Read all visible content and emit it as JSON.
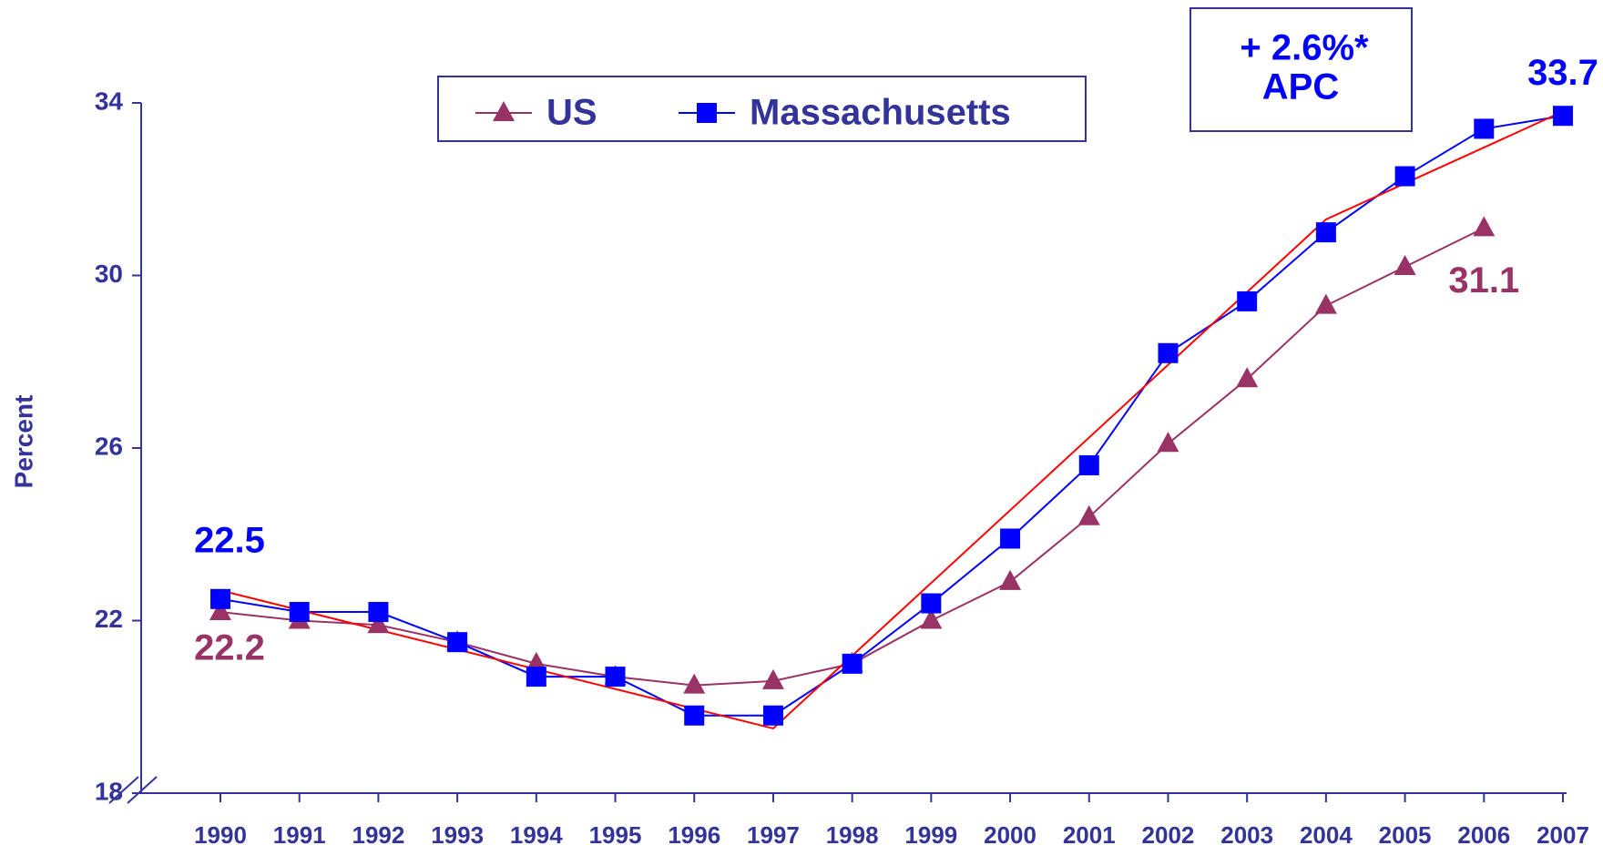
{
  "chart_data": {
    "type": "line",
    "y_label": "Percent",
    "annotation": [
      "+ 2.6%*",
      "APC"
    ],
    "x": [
      1990,
      1991,
      1992,
      1993,
      1994,
      1995,
      1996,
      1997,
      1998,
      1999,
      2000,
      2001,
      2002,
      2003,
      2004,
      2005,
      2006,
      2007
    ],
    "series": [
      {
        "name": "US",
        "color": "#993366",
        "marker": "triangle",
        "values": [
          22.2,
          22.0,
          21.9,
          21.5,
          21.0,
          20.7,
          20.5,
          20.6,
          21.0,
          22.0,
          22.9,
          24.4,
          26.1,
          27.6,
          29.3,
          30.2,
          31.1,
          null
        ]
      },
      {
        "name": "Massachusetts",
        "color": "#0000ff",
        "marker": "square",
        "values": [
          22.5,
          22.2,
          22.2,
          21.5,
          20.7,
          20.7,
          19.8,
          19.8,
          21.0,
          22.4,
          23.9,
          25.6,
          28.2,
          29.4,
          31.0,
          32.3,
          33.4,
          33.7
        ]
      }
    ],
    "trend": {
      "color": "#ff0000",
      "x": [
        1990,
        1997,
        2004,
        2007
      ],
      "values": [
        22.7,
        19.5,
        31.3,
        33.8
      ]
    },
    "ylim": [
      18,
      34
    ],
    "yticks": [
      18,
      22,
      26,
      30,
      34
    ]
  }
}
